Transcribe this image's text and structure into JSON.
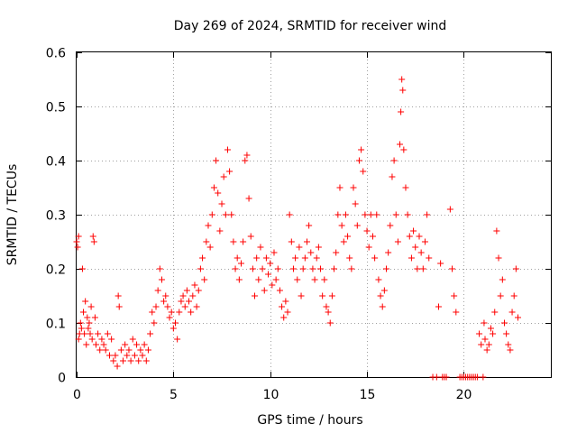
{
  "chart_data": {
    "type": "scatter",
    "title": "Day 269 of 2024, SRMTID for receiver wind",
    "xlabel": "GPS time / hours",
    "ylabel": "SRMTID / TECUs",
    "xlim": [
      0,
      24.5
    ],
    "ylim": [
      0,
      0.6
    ],
    "xticks": [
      0,
      5,
      10,
      15,
      20
    ],
    "yticks": [
      0,
      0.1,
      0.2,
      0.3,
      0.4,
      0.5,
      0.6
    ],
    "xtick_labels": [
      "0",
      "5",
      "10",
      "15",
      "20"
    ],
    "ytick_labels": [
      "0",
      "0.1",
      "0.2",
      "0.3",
      "0.4",
      "0.5",
      "0.6"
    ],
    "grid": true,
    "marker": "plus",
    "color": "#ff0000",
    "series": [
      {
        "name": "SRMTID",
        "points": [
          [
            0.0,
            0.25
          ],
          [
            0.05,
            0.24
          ],
          [
            0.1,
            0.26
          ],
          [
            0.1,
            0.07
          ],
          [
            0.15,
            0.08
          ],
          [
            0.2,
            0.1
          ],
          [
            0.25,
            0.09
          ],
          [
            0.3,
            0.2
          ],
          [
            0.35,
            0.12
          ],
          [
            0.4,
            0.08
          ],
          [
            0.45,
            0.14
          ],
          [
            0.5,
            0.06
          ],
          [
            0.55,
            0.11
          ],
          [
            0.6,
            0.09
          ],
          [
            0.65,
            0.1
          ],
          [
            0.7,
            0.08
          ],
          [
            0.75,
            0.13
          ],
          [
            0.8,
            0.07
          ],
          [
            0.85,
            0.26
          ],
          [
            0.9,
            0.25
          ],
          [
            0.95,
            0.11
          ],
          [
            1.0,
            0.06
          ],
          [
            1.1,
            0.08
          ],
          [
            1.2,
            0.05
          ],
          [
            1.3,
            0.07
          ],
          [
            1.4,
            0.06
          ],
          [
            1.5,
            0.05
          ],
          [
            1.6,
            0.08
          ],
          [
            1.7,
            0.04
          ],
          [
            1.8,
            0.07
          ],
          [
            1.9,
            0.03
          ],
          [
            2.0,
            0.04
          ],
          [
            2.1,
            0.02
          ],
          [
            2.15,
            0.15
          ],
          [
            2.2,
            0.13
          ],
          [
            2.3,
            0.05
          ],
          [
            2.4,
            0.03
          ],
          [
            2.5,
            0.06
          ],
          [
            2.6,
            0.04
          ],
          [
            2.7,
            0.05
          ],
          [
            2.8,
            0.03
          ],
          [
            2.9,
            0.07
          ],
          [
            3.0,
            0.04
          ],
          [
            3.1,
            0.06
          ],
          [
            3.2,
            0.03
          ],
          [
            3.3,
            0.05
          ],
          [
            3.4,
            0.04
          ],
          [
            3.5,
            0.06
          ],
          [
            3.6,
            0.03
          ],
          [
            3.7,
            0.05
          ],
          [
            3.8,
            0.08
          ],
          [
            3.9,
            0.12
          ],
          [
            4.0,
            0.1
          ],
          [
            4.1,
            0.13
          ],
          [
            4.2,
            0.16
          ],
          [
            4.3,
            0.2
          ],
          [
            4.4,
            0.18
          ],
          [
            4.5,
            0.14
          ],
          [
            4.6,
            0.15
          ],
          [
            4.7,
            0.13
          ],
          [
            4.8,
            0.11
          ],
          [
            4.9,
            0.12
          ],
          [
            5.0,
            0.09
          ],
          [
            5.1,
            0.1
          ],
          [
            5.2,
            0.07
          ],
          [
            5.3,
            0.12
          ],
          [
            5.4,
            0.14
          ],
          [
            5.5,
            0.15
          ],
          [
            5.6,
            0.13
          ],
          [
            5.7,
            0.16
          ],
          [
            5.8,
            0.14
          ],
          [
            5.9,
            0.12
          ],
          [
            6.0,
            0.15
          ],
          [
            6.1,
            0.17
          ],
          [
            6.2,
            0.13
          ],
          [
            6.3,
            0.16
          ],
          [
            6.4,
            0.2
          ],
          [
            6.5,
            0.22
          ],
          [
            6.6,
            0.18
          ],
          [
            6.7,
            0.25
          ],
          [
            6.8,
            0.28
          ],
          [
            6.9,
            0.24
          ],
          [
            7.0,
            0.3
          ],
          [
            7.1,
            0.35
          ],
          [
            7.2,
            0.4
          ],
          [
            7.3,
            0.34
          ],
          [
            7.4,
            0.27
          ],
          [
            7.5,
            0.32
          ],
          [
            7.6,
            0.37
          ],
          [
            7.7,
            0.3
          ],
          [
            7.8,
            0.42
          ],
          [
            7.9,
            0.38
          ],
          [
            8.0,
            0.3
          ],
          [
            8.1,
            0.25
          ],
          [
            8.2,
            0.2
          ],
          [
            8.3,
            0.22
          ],
          [
            8.4,
            0.18
          ],
          [
            8.5,
            0.21
          ],
          [
            8.6,
            0.25
          ],
          [
            8.7,
            0.4
          ],
          [
            8.8,
            0.41
          ],
          [
            8.9,
            0.33
          ],
          [
            9.0,
            0.26
          ],
          [
            9.1,
            0.2
          ],
          [
            9.2,
            0.15
          ],
          [
            9.3,
            0.22
          ],
          [
            9.4,
            0.18
          ],
          [
            9.5,
            0.24
          ],
          [
            9.6,
            0.2
          ],
          [
            9.7,
            0.16
          ],
          [
            9.8,
            0.22
          ],
          [
            9.9,
            0.19
          ],
          [
            10.0,
            0.21
          ],
          [
            10.1,
            0.17
          ],
          [
            10.2,
            0.23
          ],
          [
            10.3,
            0.18
          ],
          [
            10.4,
            0.2
          ],
          [
            10.5,
            0.16
          ],
          [
            10.6,
            0.13
          ],
          [
            10.7,
            0.11
          ],
          [
            10.8,
            0.14
          ],
          [
            10.9,
            0.12
          ],
          [
            11.0,
            0.3
          ],
          [
            11.1,
            0.25
          ],
          [
            11.2,
            0.2
          ],
          [
            11.3,
            0.22
          ],
          [
            11.4,
            0.18
          ],
          [
            11.5,
            0.24
          ],
          [
            11.6,
            0.15
          ],
          [
            11.7,
            0.2
          ],
          [
            11.8,
            0.22
          ],
          [
            11.9,
            0.25
          ],
          [
            12.0,
            0.28
          ],
          [
            12.1,
            0.23
          ],
          [
            12.2,
            0.2
          ],
          [
            12.3,
            0.18
          ],
          [
            12.4,
            0.22
          ],
          [
            12.5,
            0.24
          ],
          [
            12.6,
            0.2
          ],
          [
            12.7,
            0.15
          ],
          [
            12.8,
            0.18
          ],
          [
            12.9,
            0.13
          ],
          [
            13.0,
            0.12
          ],
          [
            13.1,
            0.1
          ],
          [
            13.2,
            0.15
          ],
          [
            13.3,
            0.2
          ],
          [
            13.4,
            0.23
          ],
          [
            13.5,
            0.3
          ],
          [
            13.6,
            0.35
          ],
          [
            13.7,
            0.28
          ],
          [
            13.8,
            0.25
          ],
          [
            13.9,
            0.3
          ],
          [
            14.0,
            0.26
          ],
          [
            14.1,
            0.22
          ],
          [
            14.2,
            0.2
          ],
          [
            14.3,
            0.35
          ],
          [
            14.4,
            0.32
          ],
          [
            14.5,
            0.28
          ],
          [
            14.6,
            0.4
          ],
          [
            14.7,
            0.42
          ],
          [
            14.8,
            0.38
          ],
          [
            14.9,
            0.3
          ],
          [
            15.0,
            0.27
          ],
          [
            15.1,
            0.24
          ],
          [
            15.2,
            0.3
          ],
          [
            15.3,
            0.26
          ],
          [
            15.4,
            0.22
          ],
          [
            15.5,
            0.3
          ],
          [
            15.6,
            0.18
          ],
          [
            15.7,
            0.15
          ],
          [
            15.8,
            0.13
          ],
          [
            15.9,
            0.16
          ],
          [
            16.0,
            0.2
          ],
          [
            16.1,
            0.23
          ],
          [
            16.2,
            0.28
          ],
          [
            16.3,
            0.37
          ],
          [
            16.4,
            0.4
          ],
          [
            16.5,
            0.3
          ],
          [
            16.6,
            0.25
          ],
          [
            16.7,
            0.43
          ],
          [
            16.75,
            0.49
          ],
          [
            16.8,
            0.55
          ],
          [
            16.85,
            0.53
          ],
          [
            16.9,
            0.42
          ],
          [
            17.0,
            0.35
          ],
          [
            17.1,
            0.3
          ],
          [
            17.2,
            0.26
          ],
          [
            17.3,
            0.22
          ],
          [
            17.4,
            0.27
          ],
          [
            17.5,
            0.24
          ],
          [
            17.6,
            0.2
          ],
          [
            17.7,
            0.26
          ],
          [
            17.8,
            0.23
          ],
          [
            17.9,
            0.2
          ],
          [
            18.0,
            0.25
          ],
          [
            18.1,
            0.3
          ],
          [
            18.2,
            0.22
          ],
          [
            18.4,
            0.0
          ],
          [
            18.6,
            0.0
          ],
          [
            18.7,
            0.13
          ],
          [
            18.8,
            0.21
          ],
          [
            18.9,
            0.0
          ],
          [
            19.0,
            0.0
          ],
          [
            19.1,
            0.0
          ],
          [
            19.3,
            0.31
          ],
          [
            19.4,
            0.2
          ],
          [
            19.5,
            0.15
          ],
          [
            19.6,
            0.12
          ],
          [
            19.8,
            0.0
          ],
          [
            19.9,
            0.0
          ],
          [
            20.0,
            0.0
          ],
          [
            20.1,
            0.0
          ],
          [
            20.2,
            0.0
          ],
          [
            20.3,
            0.0
          ],
          [
            20.4,
            0.0
          ],
          [
            20.5,
            0.0
          ],
          [
            20.6,
            0.0
          ],
          [
            20.7,
            0.0
          ],
          [
            20.8,
            0.08
          ],
          [
            20.9,
            0.06
          ],
          [
            21.0,
            0.0
          ],
          [
            21.05,
            0.1
          ],
          [
            21.1,
            0.07
          ],
          [
            21.2,
            0.05
          ],
          [
            21.3,
            0.06
          ],
          [
            21.4,
            0.09
          ],
          [
            21.5,
            0.08
          ],
          [
            21.6,
            0.12
          ],
          [
            21.7,
            0.27
          ],
          [
            21.8,
            0.22
          ],
          [
            21.9,
            0.15
          ],
          [
            22.0,
            0.18
          ],
          [
            22.1,
            0.1
          ],
          [
            22.2,
            0.08
          ],
          [
            22.3,
            0.06
          ],
          [
            22.4,
            0.05
          ],
          [
            22.5,
            0.12
          ],
          [
            22.6,
            0.15
          ],
          [
            22.7,
            0.2
          ],
          [
            22.8,
            0.11
          ]
        ]
      }
    ]
  }
}
